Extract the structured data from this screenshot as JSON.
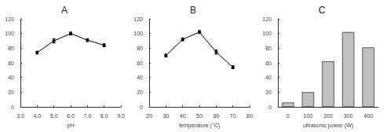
{
  "chart_data": [
    {
      "type": "line",
      "title": "A",
      "x_label": "pH",
      "x": [
        4,
        5,
        6,
        7,
        8
      ],
      "values": [
        74,
        90,
        100,
        91,
        84
      ],
      "errors": [
        2,
        3,
        2,
        2,
        2
      ],
      "color": "#000000",
      "marker": "circle",
      "xlim": [
        3,
        9
      ],
      "xticks": [
        {
          "value": 3,
          "label": "3.0"
        },
        {
          "value": 4,
          "label": "4.0"
        },
        {
          "value": 5,
          "label": "5.0"
        },
        {
          "value": 6,
          "label": "6.0"
        },
        {
          "value": 7,
          "label": "7.0"
        },
        {
          "value": 8,
          "label": "8.0"
        },
        {
          "value": 9,
          "label": "9.0"
        }
      ],
      "ylim": [
        0,
        120
      ],
      "yticks": [
        0,
        20,
        40,
        60,
        80,
        100,
        120
      ]
    },
    {
      "type": "line",
      "title": "B",
      "x_label": "temperature (°C)",
      "x": [
        30,
        40,
        50,
        60,
        70
      ],
      "values": [
        70,
        92,
        102,
        75,
        54
      ],
      "errors": [
        2,
        2,
        2,
        3,
        2
      ],
      "color": "#000000",
      "marker": "circle",
      "xlim": [
        20,
        80
      ],
      "xticks": [
        20,
        30,
        40,
        50,
        60,
        70,
        80
      ],
      "ylim": [
        0,
        120
      ],
      "yticks": [
        0,
        20,
        40,
        60,
        80,
        100,
        120
      ]
    },
    {
      "type": "bar",
      "title": "C",
      "x_label": "ultrasonic power (W)",
      "categories": [
        "0",
        "100",
        "200",
        "300",
        "400"
      ],
      "values": [
        6,
        20,
        62,
        102,
        81
      ],
      "color": "#c0c0c0",
      "ylim": [
        0,
        120
      ],
      "yticks": [
        0,
        20,
        40,
        60,
        80,
        100,
        120
      ]
    }
  ]
}
